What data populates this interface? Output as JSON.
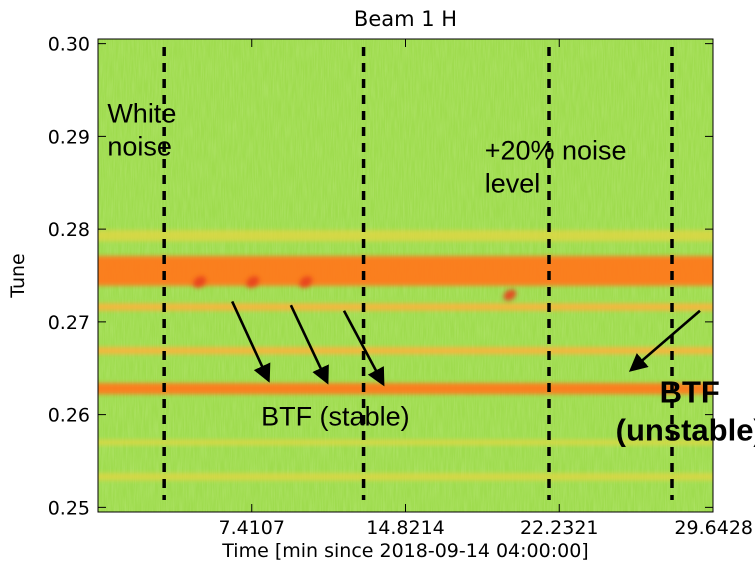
{
  "chart_data": {
    "type": "heatmap",
    "title": "Beam 1 H",
    "xlabel": "Time [min since 2018-09-14 04:00:00]",
    "ylabel": "Tune",
    "xlim": [
      0,
      29.6428
    ],
    "ylim": [
      0.2495,
      0.3005
    ],
    "xticks": [
      7.4107,
      14.8214,
      22.2321,
      29.6428
    ],
    "xtick_labels": [
      "7.4107",
      "14.8214",
      "22.2321",
      "29.6428"
    ],
    "yticks": [
      0.25,
      0.26,
      0.27,
      0.28,
      0.29,
      0.3
    ],
    "ytick_labels": [
      "0.25",
      "0.26",
      "0.27",
      "0.28",
      "0.29",
      "0.30"
    ],
    "colors": {
      "background": "#9fdc4f",
      "band_strong": "#ff7a1c",
      "band_medium": "#ffb23a",
      "band_weak": "#e9d640",
      "peak": "#e8401a"
    },
    "bands": [
      {
        "tune": 0.2755,
        "width": 0.0032,
        "level": "strong"
      },
      {
        "tune": 0.2628,
        "width": 0.0012,
        "level": "strong"
      },
      {
        "tune": 0.2669,
        "width": 0.0008,
        "level": "medium"
      },
      {
        "tune": 0.2716,
        "width": 0.0008,
        "level": "medium"
      },
      {
        "tune": 0.2793,
        "width": 0.0012,
        "level": "weak"
      },
      {
        "tune": 0.2533,
        "width": 0.0008,
        "level": "weak"
      },
      {
        "tune": 0.257,
        "width": 0.0006,
        "level": "weak"
      }
    ],
    "excitation_peaks": [
      {
        "time": 10.9,
        "tune": 0.2743
      },
      {
        "time": 16.6,
        "tune": 0.2743
      },
      {
        "time": 22.3,
        "tune": 0.2743
      },
      {
        "time": 44.2,
        "tune": 0.2729
      }
    ],
    "markers": [
      {
        "time": 7.1
      },
      {
        "time": 28.5
      },
      {
        "time": 48.4
      },
      {
        "time": 61.6
      }
    ],
    "annotations": [
      {
        "lines": [
          "White",
          "noise"
        ],
        "time": 1.0,
        "tune": 0.2915,
        "style": "normal"
      },
      {
        "lines": [
          "+20% noise",
          "level"
        ],
        "time": 41.5,
        "tune": 0.2875,
        "style": "normal"
      },
      {
        "lines": [
          "BTF (stable)"
        ],
        "time": 17.5,
        "tune": 0.2588,
        "style": "normal"
      },
      {
        "lines": [
          "BTF",
          "(unstable)"
        ],
        "time": 63.5,
        "tune": 0.2613,
        "style": "bold"
      }
    ],
    "arrows": [
      {
        "from": [
          14.4,
          0.2722
        ],
        "to": [
          18.3,
          0.2637
        ]
      },
      {
        "from": [
          20.7,
          0.2718
        ],
        "to": [
          24.6,
          0.2635
        ]
      },
      {
        "from": [
          26.4,
          0.2712
        ],
        "to": [
          30.6,
          0.2633
        ]
      },
      {
        "from": [
          64.6,
          0.2712
        ],
        "to": [
          57.2,
          0.2648
        ]
      }
    ]
  }
}
